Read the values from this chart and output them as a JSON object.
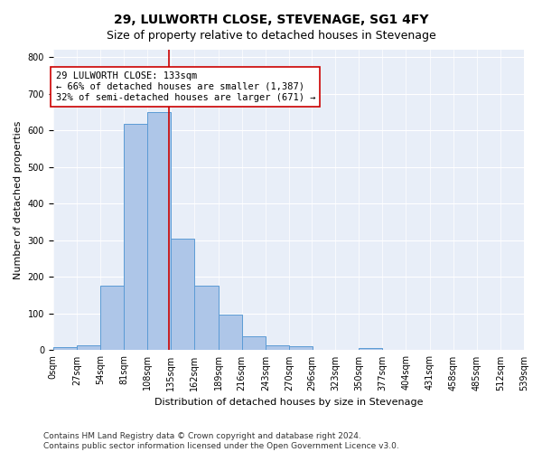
{
  "title": "29, LULWORTH CLOSE, STEVENAGE, SG1 4FY",
  "subtitle": "Size of property relative to detached houses in Stevenage",
  "xlabel": "Distribution of detached houses by size in Stevenage",
  "ylabel": "Number of detached properties",
  "bar_color": "#aec6e8",
  "bar_edge_color": "#5b9bd5",
  "background_color": "#e8eef8",
  "grid_color": "#ffffff",
  "bin_edges": [
    0,
    27,
    54,
    81,
    108,
    135,
    162,
    189,
    216,
    243,
    270,
    296,
    323,
    350,
    377,
    404,
    431,
    458,
    485,
    512,
    539
  ],
  "bar_heights": [
    8,
    13,
    175,
    617,
    650,
    305,
    175,
    97,
    37,
    14,
    10,
    0,
    0,
    7,
    0,
    0,
    0,
    0,
    0,
    0
  ],
  "property_size": 133,
  "vline_color": "#cc0000",
  "annotation_line1": "29 LULWORTH CLOSE: 133sqm",
  "annotation_line2": "← 66% of detached houses are smaller (1,387)",
  "annotation_line3": "32% of semi-detached houses are larger (671) →",
  "annotation_box_color": "#ffffff",
  "annotation_box_edge": "#cc0000",
  "ylim": [
    0,
    820
  ],
  "yticks": [
    0,
    100,
    200,
    300,
    400,
    500,
    600,
    700,
    800
  ],
  "footer": "Contains HM Land Registry data © Crown copyright and database right 2024.\nContains public sector information licensed under the Open Government Licence v3.0.",
  "title_fontsize": 10,
  "subtitle_fontsize": 9,
  "xlabel_fontsize": 8,
  "ylabel_fontsize": 8,
  "annotation_fontsize": 7.5,
  "tick_fontsize": 7,
  "footer_fontsize": 6.5
}
